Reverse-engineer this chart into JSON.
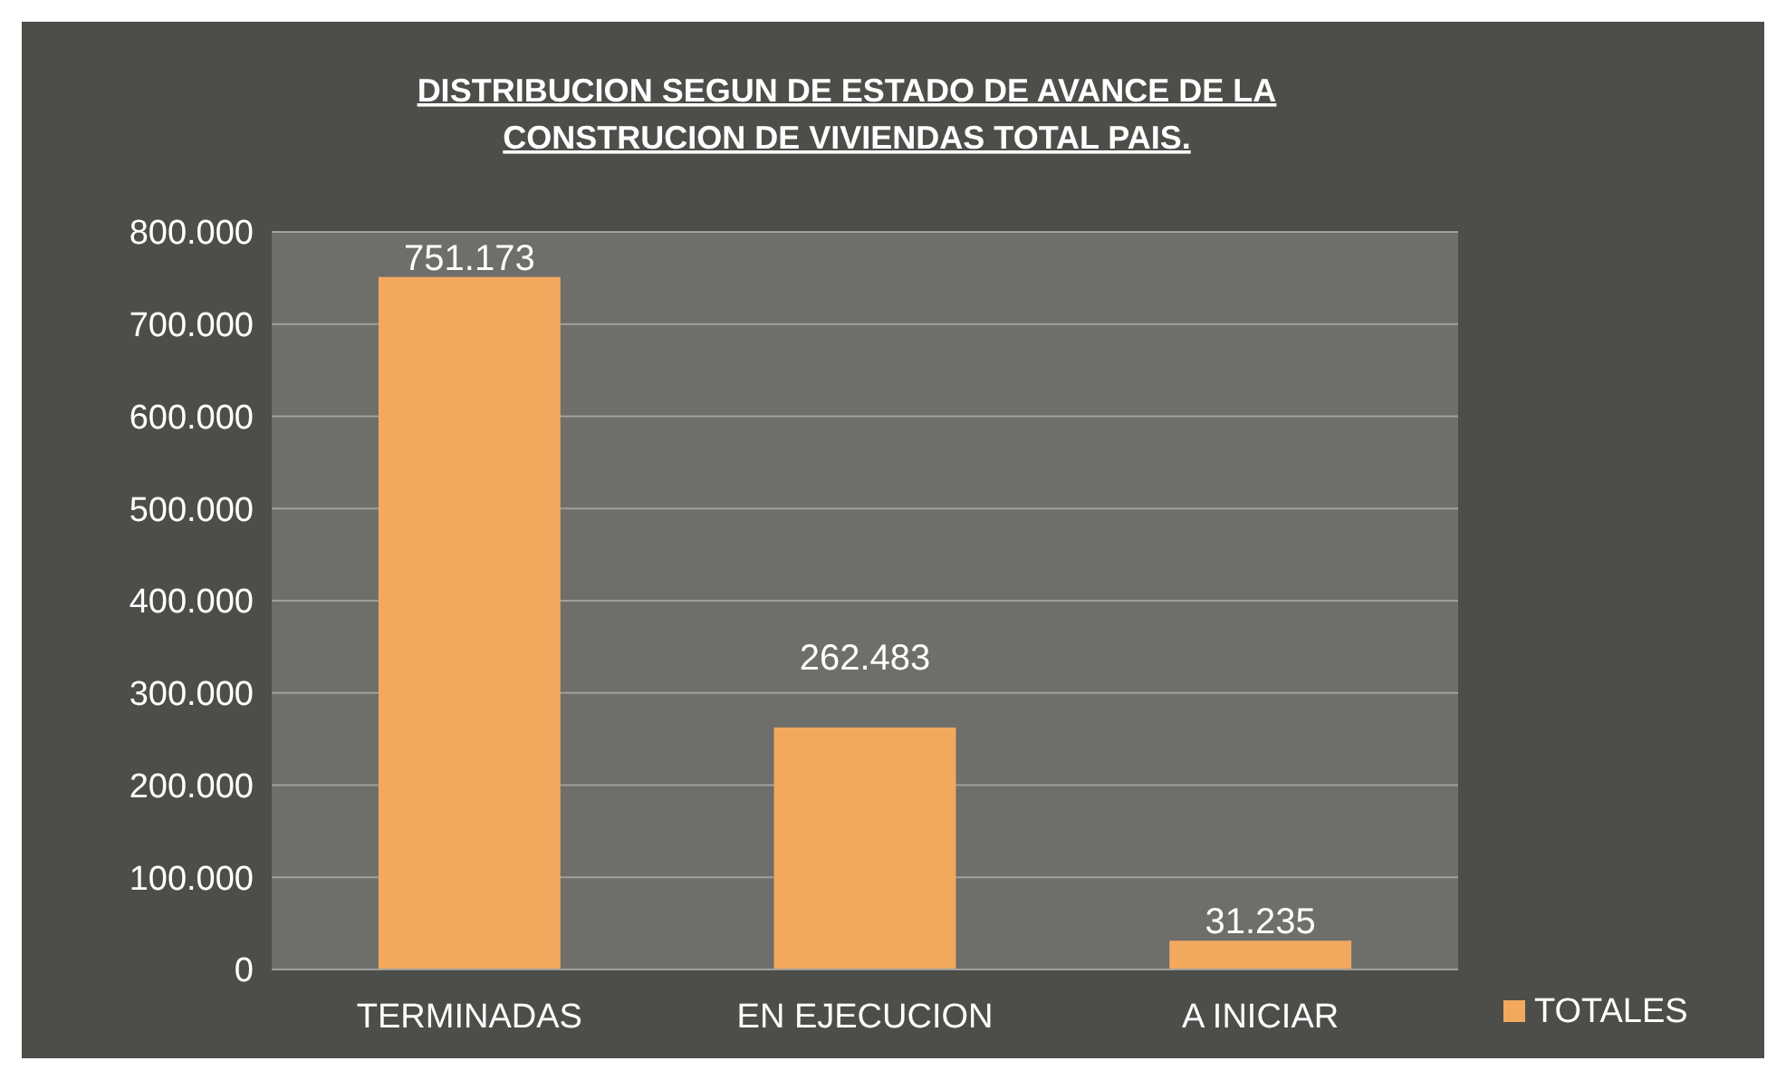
{
  "chart_data": {
    "type": "bar",
    "title": "DISTRIBUCION SEGUN DE ESTADO DE AVANCE DE LA CONSTRUCION DE VIVIENDAS TOTAL PAIS.",
    "categories": [
      "TERMINADAS",
      "EN EJECUCION",
      "A INICIAR"
    ],
    "series": [
      {
        "name": "TOTALES",
        "color": "#f2a95e",
        "values": [
          751173,
          262483,
          31235
        ],
        "value_labels": [
          "751.173",
          "262.483",
          "31.235"
        ]
      }
    ],
    "ylim": [
      0,
      800000
    ],
    "yticks": [
      {
        "value": 0,
        "label": "0"
      },
      {
        "value": 100000,
        "label": "100.000"
      },
      {
        "value": 200000,
        "label": "200.000"
      },
      {
        "value": 300000,
        "label": "300.000"
      },
      {
        "value": 400000,
        "label": "400.000"
      },
      {
        "value": 500000,
        "label": "500.000"
      },
      {
        "value": 600000,
        "label": "600.000"
      },
      {
        "value": 700000,
        "label": "700.000"
      },
      {
        "value": 800000,
        "label": "800.000"
      }
    ],
    "grid": "y",
    "legend": "right"
  }
}
